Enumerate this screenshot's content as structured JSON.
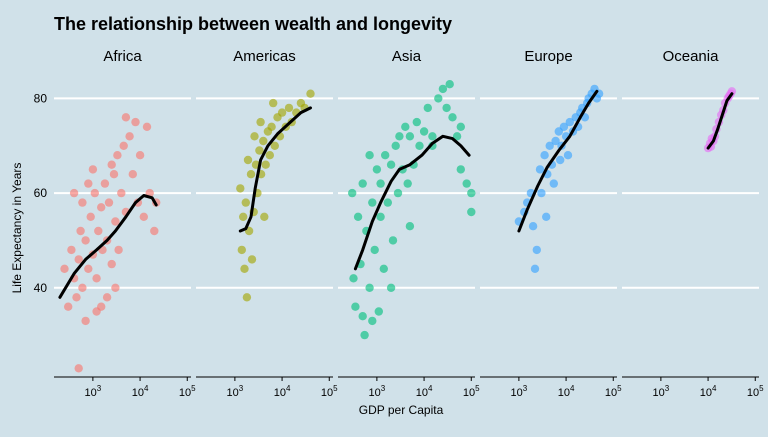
{
  "chart_data": {
    "type": "scatter",
    "title": "The relationship between wealth and longevity",
    "xlabel": "GDP per Capita",
    "ylabel": "Life Expectancy in Years",
    "x_scale": "log10",
    "xlim": [
      150,
      120000
    ],
    "ylim": [
      22,
      86
    ],
    "x_ticks": [
      1000,
      10000,
      100000
    ],
    "x_tick_labels": [
      {
        "base": "10",
        "exp": "3"
      },
      {
        "base": "10",
        "exp": "4"
      },
      {
        "base": "10",
        "exp": "5"
      }
    ],
    "y_ticks": [
      40,
      60,
      80
    ],
    "y_tick_labels": [
      "40",
      "60",
      "80"
    ],
    "grid": "horizontal major lines",
    "legend": "none",
    "panels": [
      {
        "name": "Africa",
        "color": "#f8766d",
        "points": [
          [
            250,
            44
          ],
          [
            300,
            36
          ],
          [
            350,
            48
          ],
          [
            400,
            42
          ],
          [
            450,
            38
          ],
          [
            500,
            46
          ],
          [
            550,
            52
          ],
          [
            600,
            40
          ],
          [
            700,
            50
          ],
          [
            800,
            44
          ],
          [
            900,
            55
          ],
          [
            1000,
            47
          ],
          [
            1100,
            60
          ],
          [
            1200,
            42
          ],
          [
            1300,
            52
          ],
          [
            1500,
            57
          ],
          [
            1600,
            48
          ],
          [
            1800,
            62
          ],
          [
            2000,
            50
          ],
          [
            2200,
            58
          ],
          [
            2500,
            45
          ],
          [
            2800,
            64
          ],
          [
            3000,
            54
          ],
          [
            3300,
            68
          ],
          [
            3500,
            48
          ],
          [
            4000,
            60
          ],
          [
            4500,
            70
          ],
          [
            5000,
            56
          ],
          [
            6000,
            72
          ],
          [
            7000,
            64
          ],
          [
            8000,
            75
          ],
          [
            9000,
            58
          ],
          [
            10000,
            68
          ],
          [
            12000,
            55
          ],
          [
            14000,
            74
          ],
          [
            16000,
            60
          ],
          [
            20000,
            52
          ],
          [
            22000,
            58
          ],
          [
            400,
            60
          ],
          [
            1500,
            36
          ],
          [
            500,
            23
          ],
          [
            700,
            33
          ],
          [
            2000,
            38
          ],
          [
            1000,
            65
          ],
          [
            600,
            58
          ],
          [
            3000,
            40
          ],
          [
            800,
            62
          ],
          [
            5000,
            76
          ],
          [
            1200,
            35
          ],
          [
            2500,
            66
          ]
        ],
        "trend": [
          [
            200,
            38
          ],
          [
            400,
            43
          ],
          [
            700,
            46
          ],
          [
            1200,
            48
          ],
          [
            2000,
            50
          ],
          [
            3000,
            52
          ],
          [
            5000,
            55
          ],
          [
            8000,
            58
          ],
          [
            12000,
            59.5
          ],
          [
            18000,
            59
          ],
          [
            22000,
            57.5
          ]
        ]
      },
      {
        "name": "Americas",
        "color": "#a3a500",
        "points": [
          [
            1300,
            61
          ],
          [
            1400,
            48
          ],
          [
            1500,
            55
          ],
          [
            1700,
            58
          ],
          [
            1800,
            38
          ],
          [
            2000,
            52
          ],
          [
            2200,
            64
          ],
          [
            2500,
            56
          ],
          [
            2800,
            66
          ],
          [
            3000,
            60
          ],
          [
            3300,
            69
          ],
          [
            3600,
            64
          ],
          [
            4000,
            71
          ],
          [
            4500,
            66
          ],
          [
            5000,
            73
          ],
          [
            5500,
            68
          ],
          [
            6000,
            74
          ],
          [
            7000,
            70
          ],
          [
            8000,
            76
          ],
          [
            9000,
            72
          ],
          [
            10000,
            77
          ],
          [
            12000,
            74
          ],
          [
            14000,
            78
          ],
          [
            16000,
            75
          ],
          [
            20000,
            77
          ],
          [
            25000,
            79
          ],
          [
            30000,
            78
          ],
          [
            40000,
            81
          ],
          [
            1600,
            44
          ],
          [
            2300,
            46
          ],
          [
            3500,
            75
          ],
          [
            6500,
            79
          ],
          [
            1900,
            67
          ],
          [
            4200,
            55
          ],
          [
            2600,
            72
          ]
        ],
        "trend": [
          [
            1300,
            52
          ],
          [
            1700,
            52.5
          ],
          [
            2200,
            55
          ],
          [
            2700,
            61
          ],
          [
            3500,
            67
          ],
          [
            5000,
            70
          ],
          [
            8000,
            72.5
          ],
          [
            15000,
            75
          ],
          [
            25000,
            77
          ],
          [
            40000,
            78
          ]
        ]
      },
      {
        "name": "Asia",
        "color": "#00bf7d",
        "points": [
          [
            300,
            60
          ],
          [
            320,
            42
          ],
          [
            350,
            36
          ],
          [
            400,
            55
          ],
          [
            450,
            45
          ],
          [
            500,
            62
          ],
          [
            550,
            30
          ],
          [
            600,
            52
          ],
          [
            700,
            40
          ],
          [
            800,
            58
          ],
          [
            900,
            48
          ],
          [
            1000,
            65
          ],
          [
            1100,
            35
          ],
          [
            1200,
            55
          ],
          [
            1400,
            44
          ],
          [
            1500,
            68
          ],
          [
            1700,
            58
          ],
          [
            2000,
            66
          ],
          [
            2200,
            50
          ],
          [
            2500,
            70
          ],
          [
            2800,
            60
          ],
          [
            3000,
            72
          ],
          [
            3500,
            65
          ],
          [
            4000,
            74
          ],
          [
            4500,
            62
          ],
          [
            5000,
            72
          ],
          [
            6000,
            66
          ],
          [
            7000,
            75
          ],
          [
            8000,
            70
          ],
          [
            10000,
            73
          ],
          [
            12000,
            78
          ],
          [
            15000,
            72
          ],
          [
            20000,
            80
          ],
          [
            25000,
            82
          ],
          [
            30000,
            78
          ],
          [
            40000,
            76
          ],
          [
            50000,
            72
          ],
          [
            60000,
            74
          ],
          [
            80000,
            62
          ],
          [
            100000,
            60
          ],
          [
            100000,
            56
          ],
          [
            60000,
            65
          ],
          [
            500,
            34
          ],
          [
            800,
            33
          ],
          [
            2000,
            40
          ],
          [
            5000,
            53
          ],
          [
            15000,
            70
          ],
          [
            35000,
            83
          ],
          [
            700,
            68
          ],
          [
            1200,
            62
          ]
        ],
        "trend": [
          [
            350,
            44
          ],
          [
            500,
            48
          ],
          [
            800,
            54
          ],
          [
            1200,
            58
          ],
          [
            2000,
            62.5
          ],
          [
            3000,
            65
          ],
          [
            5000,
            66
          ],
          [
            9000,
            68
          ],
          [
            15000,
            70.5
          ],
          [
            25000,
            72
          ],
          [
            40000,
            71.5
          ],
          [
            60000,
            70
          ],
          [
            90000,
            68
          ]
        ]
      },
      {
        "name": "Europe",
        "color": "#35a2ff",
        "points": [
          [
            1000,
            54
          ],
          [
            1300,
            56
          ],
          [
            1500,
            58
          ],
          [
            1800,
            60
          ],
          [
            2000,
            53
          ],
          [
            2200,
            44
          ],
          [
            2400,
            48
          ],
          [
            2800,
            65
          ],
          [
            3000,
            60
          ],
          [
            3500,
            68
          ],
          [
            4000,
            64
          ],
          [
            4500,
            70
          ],
          [
            5000,
            66
          ],
          [
            6000,
            71
          ],
          [
            7000,
            73
          ],
          [
            8000,
            70
          ],
          [
            9000,
            74
          ],
          [
            10000,
            72
          ],
          [
            12000,
            75
          ],
          [
            14000,
            73
          ],
          [
            16000,
            76
          ],
          [
            18000,
            74
          ],
          [
            20000,
            77
          ],
          [
            22000,
            78
          ],
          [
            25000,
            76
          ],
          [
            28000,
            79
          ],
          [
            30000,
            80
          ],
          [
            35000,
            81
          ],
          [
            40000,
            82
          ],
          [
            45000,
            80
          ],
          [
            50000,
            81
          ],
          [
            3800,
            55
          ],
          [
            5500,
            62
          ],
          [
            7500,
            67
          ],
          [
            11000,
            68
          ]
        ],
        "trend": [
          [
            1000,
            52
          ],
          [
            1500,
            56.5
          ],
          [
            2500,
            61.5
          ],
          [
            4000,
            65.5
          ],
          [
            7000,
            69
          ],
          [
            12000,
            72
          ],
          [
            20000,
            76
          ],
          [
            30000,
            79
          ],
          [
            45000,
            81.5
          ]
        ]
      },
      {
        "name": "Oceania",
        "color": "#e76bf3",
        "points": [
          [
            10000,
            69.5
          ],
          [
            11000,
            70.5
          ],
          [
            12000,
            71.5
          ],
          [
            13000,
            71
          ],
          [
            14000,
            72
          ],
          [
            15000,
            73.5
          ],
          [
            17000,
            75
          ],
          [
            19000,
            76.5
          ],
          [
            21000,
            77.5
          ],
          [
            23000,
            79
          ],
          [
            26000,
            80
          ],
          [
            28000,
            80.5
          ],
          [
            30000,
            81
          ],
          [
            32000,
            81.5
          ],
          [
            11500,
            69.8
          ]
        ],
        "trend": [
          [
            10000,
            69.5
          ],
          [
            13000,
            71
          ],
          [
            16000,
            73.5
          ],
          [
            20000,
            76.5
          ],
          [
            25000,
            79.5
          ],
          [
            32000,
            81
          ]
        ]
      }
    ]
  }
}
